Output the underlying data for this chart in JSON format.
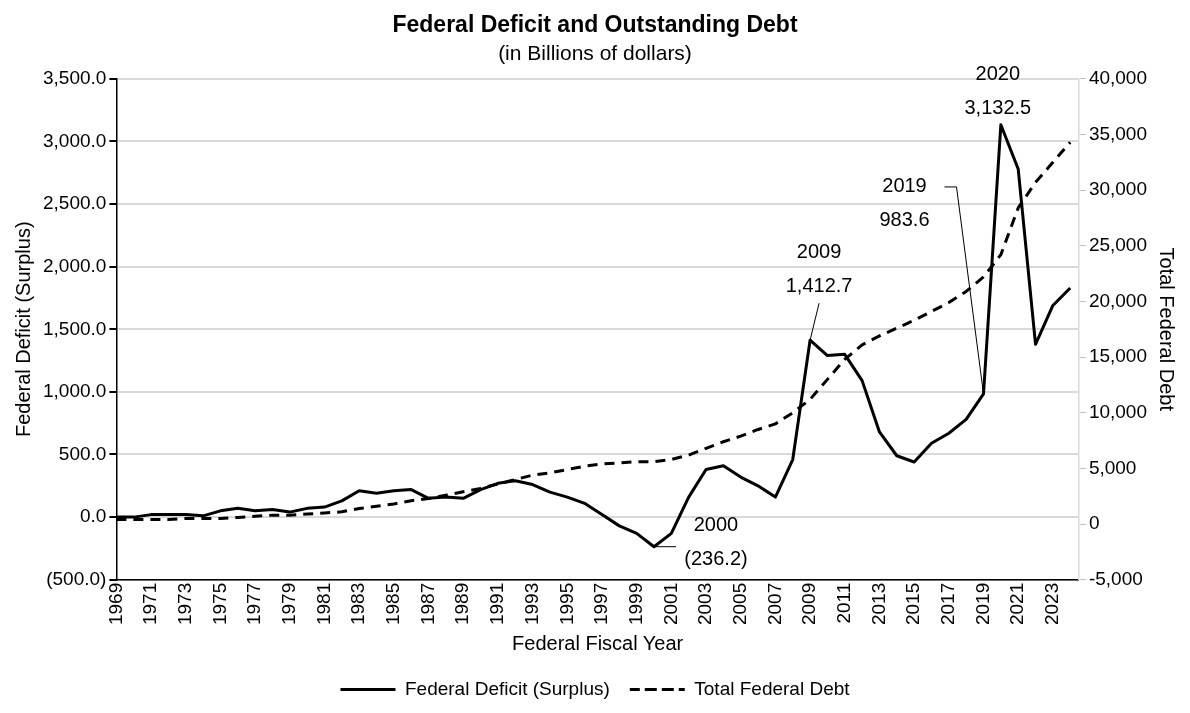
{
  "chart_data": {
    "type": "line",
    "title": "Federal Deficit and Outstanding Debt",
    "subtitle": "(in Billions of dollars)",
    "xlabel": "Federal Fiscal Year",
    "ylabel": "Federal Deficit (Surplus)",
    "y2label": "Total Federal Debt",
    "x": [
      1969,
      1970,
      1971,
      1972,
      1973,
      1974,
      1975,
      1976,
      1977,
      1978,
      1979,
      1980,
      1981,
      1982,
      1983,
      1984,
      1985,
      1986,
      1987,
      1988,
      1989,
      1990,
      1991,
      1992,
      1993,
      1994,
      1995,
      1996,
      1997,
      1998,
      1999,
      2000,
      2001,
      2002,
      2003,
      2004,
      2005,
      2006,
      2007,
      2008,
      2009,
      2010,
      2011,
      2012,
      2013,
      2014,
      2015,
      2016,
      2017,
      2018,
      2019,
      2020,
      2021,
      2022,
      2023,
      2024
    ],
    "series": [
      {
        "name": "Federal Deficit (Surplus)",
        "color": "#000000",
        "line_style": "solid",
        "values": [
          0,
          0,
          20,
          20,
          20,
          10,
          50,
          70,
          50,
          60,
          40,
          70,
          80,
          130,
          210,
          190,
          210,
          220,
          150,
          160,
          150,
          220,
          270,
          290,
          260,
          200,
          160,
          110,
          20,
          -70,
          -130,
          -236.2,
          -130,
          160,
          380,
          410,
          320,
          250,
          160,
          460,
          1412.7,
          1290,
          1300,
          1090,
          680,
          490,
          440,
          590,
          670,
          780,
          983.6,
          3132.5,
          2780,
          1380,
          1690,
          1830
        ]
      },
      {
        "name": "Total Federal Debt",
        "color": "#000000",
        "line_style": "dashed",
        "axis": "y2",
        "values": [
          400,
          400,
          400,
          400,
          500,
          500,
          500,
          600,
          700,
          800,
          800,
          900,
          1000,
          1100,
          1400,
          1600,
          1800,
          2100,
          2300,
          2600,
          2900,
          3200,
          3600,
          4000,
          4400,
          4600,
          4900,
          5200,
          5400,
          5500,
          5600,
          5600,
          5800,
          6200,
          6800,
          7400,
          7900,
          8500,
          9000,
          10000,
          11200,
          13000,
          14800,
          16100,
          16900,
          17600,
          18300,
          19100,
          19900,
          20900,
          22200,
          24200,
          28400,
          30700,
          32500,
          34300
        ]
      }
    ],
    "xlim": [
      1969,
      2024.5
    ],
    "xticks": [
      1969,
      1971,
      1973,
      1975,
      1977,
      1979,
      1981,
      1983,
      1985,
      1987,
      1989,
      1991,
      1993,
      1995,
      1997,
      1999,
      2001,
      2003,
      2005,
      2007,
      2009,
      2011,
      2013,
      2015,
      2017,
      2019,
      2021,
      2023
    ],
    "ylim": [
      -500,
      3500
    ],
    "yticks": [
      {
        "value": -500,
        "label": "(500.0)"
      },
      {
        "value": 0,
        "label": "0.0"
      },
      {
        "value": 500,
        "label": "500.0"
      },
      {
        "value": 1000,
        "label": "1,000.0"
      },
      {
        "value": 1500,
        "label": "1,500.0"
      },
      {
        "value": 2000,
        "label": "2,000.0"
      },
      {
        "value": 2500,
        "label": "2,500.0"
      },
      {
        "value": 3000,
        "label": "3,000.0"
      },
      {
        "value": 3500,
        "label": "3,500.0"
      }
    ],
    "y2lim": [
      -5000,
      40000
    ],
    "y2ticks": [
      {
        "value": -5000,
        "label": "-5,000"
      },
      {
        "value": 0,
        "label": "0"
      },
      {
        "value": 5000,
        "label": "5,000"
      },
      {
        "value": 10000,
        "label": "10,000"
      },
      {
        "value": 15000,
        "label": "15,000"
      },
      {
        "value": 20000,
        "label": "20,000"
      },
      {
        "value": 25000,
        "label": "25,000"
      },
      {
        "value": 30000,
        "label": "30,000"
      },
      {
        "value": 35000,
        "label": "35,000"
      },
      {
        "value": 40000,
        "label": "40,000"
      }
    ],
    "annotations": [
      {
        "text": "2000\n(236.2)",
        "x": 2000,
        "y": -236.2
      },
      {
        "text": "2009\n1,412.7",
        "x": 2009,
        "y": 1412.7
      },
      {
        "text": "2019\n983.6",
        "x": 2019,
        "y": 983.6
      },
      {
        "text": "2020\n3,132.5",
        "x": 2020,
        "y": 3132.5
      }
    ],
    "grid": "y",
    "legend": "bottom",
    "marker": "none"
  }
}
